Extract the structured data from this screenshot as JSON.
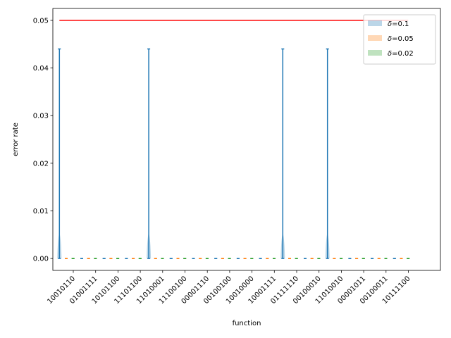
{
  "chart_data": {
    "type": "violin",
    "title": "",
    "xlabel": "function",
    "ylabel": "error rate",
    "ylim": [
      -0.0025,
      0.0525
    ],
    "yticks": [
      "0.00",
      "0.01",
      "0.02",
      "0.03",
      "0.04",
      "0.05"
    ],
    "categories": [
      "10010110",
      "01001111",
      "10101100",
      "11101100",
      "11010001",
      "11100100",
      "00001110",
      "00100100",
      "10010000",
      "10001111",
      "01111110",
      "00100010",
      "11010010",
      "00001011",
      "00100011",
      "10111100"
    ],
    "reference_line": {
      "y": 0.05,
      "color": "#ff0000",
      "x_from": "10010110",
      "x_to": "10111100"
    },
    "legend_position": "top-right",
    "series": [
      {
        "name": "δ=0.1",
        "label_prefix": "δ",
        "label_value": "=0.1",
        "color": "#1f77b4",
        "max": [
          0.044,
          0.0,
          0.0,
          0.0,
          0.044,
          0.0,
          0.0,
          0.0,
          0.0,
          0.0,
          0.044,
          0.0,
          0.044,
          0.0,
          0.0,
          0.0
        ],
        "min": [
          0,
          0,
          0,
          0,
          0,
          0,
          0,
          0,
          0,
          0,
          0,
          0,
          0,
          0,
          0,
          0
        ]
      },
      {
        "name": "δ=0.05",
        "label_prefix": "δ",
        "label_value": "=0.05",
        "color": "#ff7f0e",
        "max": [
          0,
          0,
          0,
          0,
          0,
          0,
          0,
          0,
          0,
          0,
          0,
          0,
          0,
          0,
          0,
          0
        ],
        "min": [
          0,
          0,
          0,
          0,
          0,
          0,
          0,
          0,
          0,
          0,
          0,
          0,
          0,
          0,
          0,
          0
        ]
      },
      {
        "name": "δ=0.02",
        "label_prefix": "δ",
        "label_value": "=0.02",
        "color": "#2ca02c",
        "max": [
          0,
          0,
          0,
          0,
          0,
          0,
          0,
          0,
          0,
          0,
          0,
          0,
          0,
          0,
          0,
          0
        ],
        "min": [
          0,
          0,
          0,
          0,
          0,
          0,
          0,
          0,
          0,
          0,
          0,
          0,
          0,
          0,
          0,
          0
        ]
      }
    ]
  }
}
